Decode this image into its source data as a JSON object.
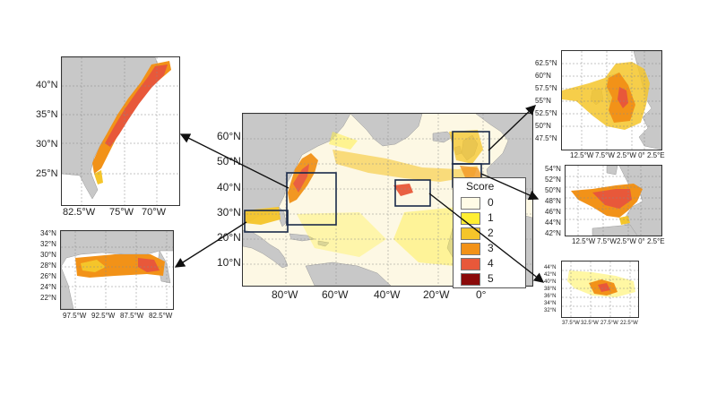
{
  "legend": {
    "title": "Score",
    "items": [
      {
        "label": "0",
        "color": "#fffbe6"
      },
      {
        "label": "1",
        "color": "#ffee33"
      },
      {
        "label": "2",
        "color": "#f5c52a"
      },
      {
        "label": "3",
        "color": "#f29218"
      },
      {
        "label": "4",
        "color": "#e8583a"
      },
      {
        "label": "5",
        "color": "#8b0a0a"
      }
    ]
  },
  "main_map": {
    "lat_labels": [
      "60°N",
      "50°N",
      "40°N",
      "30°N",
      "20°N",
      "10°N"
    ],
    "lon_labels": [
      "80°W",
      "60°W",
      "40°W",
      "20°W",
      "0°"
    ]
  },
  "us_east": {
    "lat_labels": [
      "40°N",
      "35°N",
      "30°N",
      "25°N"
    ],
    "lon_labels": [
      "82.5°W",
      "75°W",
      "70°W"
    ]
  },
  "gulf": {
    "lat_labels": [
      "34°N",
      "32°N",
      "30°N",
      "28°N",
      "26°N",
      "24°N",
      "22°N"
    ],
    "lon_labels": [
      "97.5°W",
      "92.5°W",
      "87.5°W",
      "82.5°W"
    ]
  },
  "uk": {
    "lat_labels": [
      "62.5°N",
      "60°N",
      "57.5°N",
      "55°N",
      "52.5°N",
      "50°N",
      "47.5°N"
    ],
    "lon_labels": [
      "12.5°W",
      "7.5°W",
      "2.5°W 0° 2.5°E"
    ]
  },
  "biscay": {
    "lat_labels": [
      "54°N",
      "52°N",
      "50°N",
      "48°N",
      "46°N",
      "44°N",
      "42°N"
    ],
    "lon_labels": [
      "12.5°W",
      "7.5°W",
      "2.5°W 0° 2.5°E"
    ]
  },
  "azores": {
    "lat_labels": [
      "44°N",
      "42°N",
      "40°N",
      "38°N",
      "36°N",
      "34°N",
      "32°N"
    ],
    "lon_labels": [
      "37.5°W",
      "32.5°W",
      "27.5°W",
      "22.5°W"
    ]
  }
}
